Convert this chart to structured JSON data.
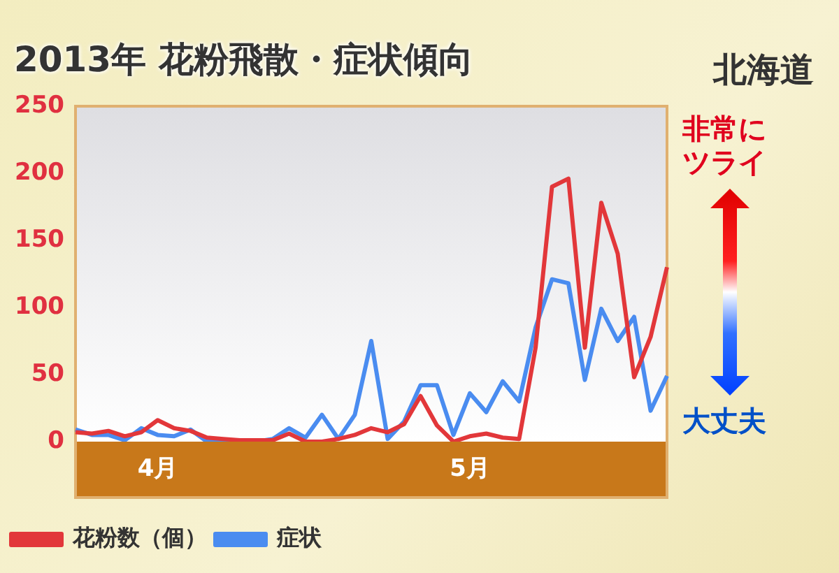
{
  "chart_data": {
    "type": "line",
    "title": "2013年 花粉飛散・症状傾向",
    "subtitle": "北海道",
    "categories": [
      null,
      null,
      null,
      null,
      null,
      "4月",
      null,
      null,
      null,
      null,
      null,
      null,
      null,
      null,
      null,
      null,
      null,
      null,
      null,
      null,
      null,
      null,
      null,
      null,
      "5月",
      null,
      null,
      null,
      null,
      null,
      null,
      null,
      null,
      null,
      null,
      null,
      null
    ],
    "series": [
      {
        "name": "花粉数（個）",
        "color": "#e2373a",
        "values": [
          7,
          6,
          8,
          4,
          7,
          16,
          10,
          8,
          3,
          2,
          1,
          1,
          1,
          6,
          0,
          0,
          2,
          5,
          10,
          7,
          13,
          34,
          12,
          0,
          4,
          6,
          3,
          2,
          70,
          190,
          196,
          70,
          178,
          140,
          48,
          78,
          130
        ]
      },
      {
        "name": "症状",
        "color": "#4a8cf0",
        "values": [
          9,
          5,
          5,
          1,
          10,
          5,
          4,
          9,
          0,
          0,
          0,
          0,
          2,
          10,
          3,
          20,
          2,
          20,
          75,
          2,
          15,
          42,
          42,
          5,
          36,
          22,
          45,
          30,
          85,
          121,
          118,
          46,
          99,
          75,
          93,
          23,
          49
        ]
      }
    ],
    "ylim": [
      0,
      250
    ],
    "yticks": [
      0,
      50,
      100,
      150,
      200,
      250
    ],
    "grid": false,
    "legend": "bottom left",
    "marker": "none",
    "line_style": "solid",
    "annotations": [
      "非常にツライ",
      "大丈夫"
    ]
  }
}
